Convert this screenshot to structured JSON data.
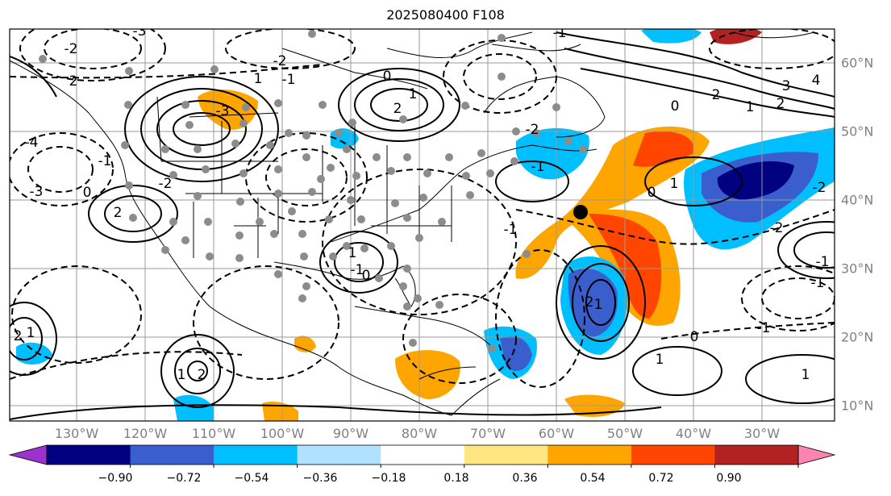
{
  "title": "2025080400 F108",
  "lon_labels": [
    "130°W",
    "120°W",
    "110°W",
    "100°W",
    "90°W",
    "80°W",
    "70°W",
    "60°W",
    "50°W",
    "40°W",
    "30°W"
  ],
  "lat_labels": [
    "60°N",
    "50°N",
    "40°N",
    "30°N",
    "20°N",
    "10°N"
  ],
  "colorbar": {
    "ticks": [
      "−0.90",
      "−0.72",
      "−0.54",
      "−0.36",
      "−0.18",
      "0.18",
      "0.36",
      "0.54",
      "0.72",
      "0.90"
    ],
    "colors": [
      "#9933cc",
      "#000080",
      "#3a5fcd",
      "#00bfff",
      "#b0e2ff",
      "#ffffff",
      "#ffe680",
      "#ffa500",
      "#ff4500",
      "#b22222",
      "#ff85b0"
    ]
  },
  "contour_labels": [
    {
      "text": "-3"
    },
    {
      "text": "-2"
    },
    {
      "text": "-3"
    },
    {
      "text": "-4"
    },
    {
      "text": "-3"
    },
    {
      "text": "0"
    },
    {
      "text": "-2"
    },
    {
      "text": "-1"
    },
    {
      "text": "1"
    },
    {
      "text": "0"
    },
    {
      "text": "1"
    },
    {
      "text": "2"
    },
    {
      "text": "3"
    },
    {
      "text": "4"
    },
    {
      "text": "2"
    },
    {
      "text": "1"
    },
    {
      "text": "2"
    },
    {
      "text": "0"
    },
    {
      "text": "-1"
    },
    {
      "text": "-2"
    },
    {
      "text": "0"
    },
    {
      "text": "1"
    },
    {
      "text": "-2"
    },
    {
      "text": "-1"
    },
    {
      "text": "2"
    },
    {
      "text": "-1"
    },
    {
      "text": "-2"
    },
    {
      "text": "-2"
    },
    {
      "text": "1"
    },
    {
      "text": "1"
    },
    {
      "text": "0"
    },
    {
      "text": "-1"
    },
    {
      "text": "0"
    },
    {
      "text": "1"
    },
    {
      "text": "-1"
    },
    {
      "text": "2"
    },
    {
      "text": "1"
    },
    {
      "text": "-1"
    },
    {
      "text": "1"
    },
    {
      "text": "1"
    },
    {
      "text": "2"
    },
    {
      "text": "-1"
    },
    {
      "text": "2"
    },
    {
      "text": "-1"
    },
    {
      "text": "2"
    }
  ]
}
